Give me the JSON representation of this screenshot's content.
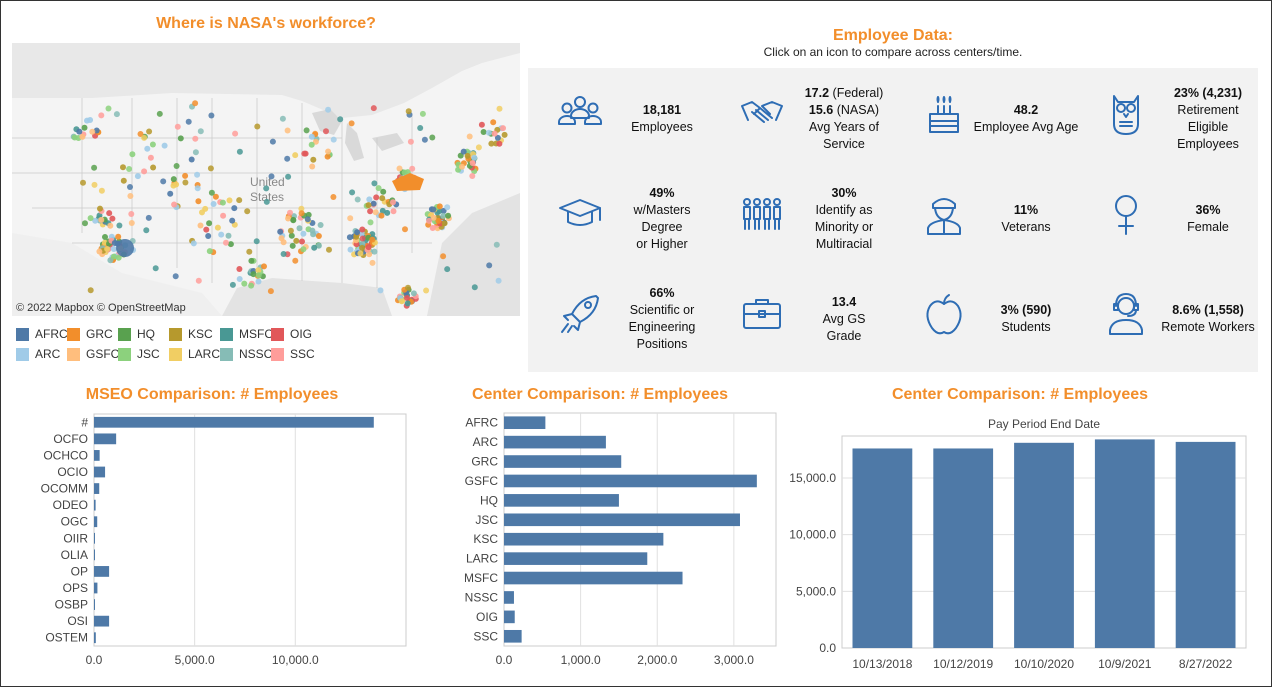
{
  "map_section": {
    "title": "Where is NASA's workforce?",
    "map_label": "United States",
    "map_label_line1": "United",
    "map_label_line2": "States",
    "attribution": "© 2022 Mapbox © OpenStreetMap",
    "legend": [
      {
        "label": "AFRC",
        "color": "#4e79a7"
      },
      {
        "label": "GRC",
        "color": "#f28e2b"
      },
      {
        "label": "HQ",
        "color": "#59a14f"
      },
      {
        "label": "KSC",
        "color": "#b6992d"
      },
      {
        "label": "MSFC",
        "color": "#499894"
      },
      {
        "label": "OIG",
        "color": "#e15759"
      },
      {
        "label": "ARC",
        "color": "#a0cbe8"
      },
      {
        "label": "GSFC",
        "color": "#ffbe7d"
      },
      {
        "label": "JSC",
        "color": "#8cd17d"
      },
      {
        "label": "LARC",
        "color": "#f1ce63"
      },
      {
        "label": "NSSC",
        "color": "#86bcb6"
      },
      {
        "label": "SSC",
        "color": "#ff9d9a"
      }
    ]
  },
  "employee_data": {
    "title": "Employee Data:",
    "subtitle": "Click on an icon to compare across centers/time.",
    "accent_color": "#2e6db4",
    "tiles": [
      {
        "icon": "people-group-icon",
        "bold": "18,181",
        "lines": [
          "Employees"
        ]
      },
      {
        "icon": "handshake-icon",
        "bold": "17.2",
        "bold_suffix": " (Federal)",
        "bold2": "15.6",
        "bold2_suffix": " (NASA)",
        "lines": [
          "Avg Years of Service"
        ]
      },
      {
        "icon": "birthday-cake-icon",
        "bold": "48.2",
        "lines": [
          "Employee Avg Age"
        ]
      },
      {
        "icon": "owl-icon",
        "bold": "23% (4,231)",
        "lines": [
          "Retirement",
          "Eligible",
          "Employees"
        ]
      },
      {
        "icon": "graduation-cap-icon",
        "bold": "49%",
        "lines": [
          "w/Masters",
          "Degree",
          "or Higher"
        ]
      },
      {
        "icon": "diverse-people-icon",
        "bold": "30%",
        "lines": [
          "Identify as",
          "Minority or",
          "Multiracial"
        ]
      },
      {
        "icon": "soldier-icon",
        "bold": "11%",
        "lines": [
          "Veterans"
        ]
      },
      {
        "icon": "female-symbol-icon",
        "bold": "36%",
        "lines": [
          "Female"
        ]
      },
      {
        "icon": "rocket-icon",
        "bold": "66%",
        "lines": [
          "Scientific or",
          "Engineering",
          "Positions"
        ]
      },
      {
        "icon": "briefcase-icon",
        "bold": "13.4",
        "lines": [
          "Avg GS",
          "Grade"
        ]
      },
      {
        "icon": "apple-icon",
        "bold": "3% (590)",
        "lines": [
          "Students"
        ]
      },
      {
        "icon": "headset-user-icon",
        "bold": "8.6% (1,558)",
        "lines": [
          "Remote Workers"
        ]
      }
    ]
  },
  "chart_data": [
    {
      "type": "bar",
      "orientation": "horizontal",
      "title": "MSEO Comparison: # Employees",
      "categories": [
        "#",
        "OCFO",
        "OCHCO",
        "OCIO",
        "OCOMM",
        "ODEO",
        "OGC",
        "OIIR",
        "OLIA",
        "OP",
        "OPS",
        "OSBP",
        "OSI",
        "OSTEM"
      ],
      "values": [
        13900,
        1100,
        280,
        550,
        260,
        80,
        160,
        20,
        30,
        750,
        170,
        30,
        750,
        90
      ],
      "xlim": [
        0,
        15500
      ],
      "xticks": [
        0,
        5000,
        10000
      ],
      "xtick_labels": [
        "0.0",
        "5,000.0",
        "10,000.0"
      ],
      "color": "#4e79a7",
      "grid": true
    },
    {
      "type": "bar",
      "orientation": "horizontal",
      "title": "Center Comparison: # Employees",
      "categories": [
        "AFRC",
        "ARC",
        "GRC",
        "GSFC",
        "HQ",
        "JSC",
        "KSC",
        "LARC",
        "MSFC",
        "NSSC",
        "OIG",
        "SSC"
      ],
      "values": [
        540,
        1330,
        1530,
        3300,
        1500,
        3080,
        2080,
        1870,
        2330,
        130,
        140,
        230
      ],
      "xlim": [
        0,
        3550
      ],
      "xticks": [
        0,
        1000,
        2000,
        3000
      ],
      "xtick_labels": [
        "0.0",
        "1,000.0",
        "2,000.0",
        "3,000.0"
      ],
      "color": "#4e79a7",
      "grid": true
    },
    {
      "type": "bar",
      "orientation": "vertical",
      "title": "Center Comparison: # Employees",
      "subtitle": "Pay Period End Date",
      "categories": [
        "10/13/2018",
        "10/12/2019",
        "10/10/2020",
        "10/9/2021",
        "8/27/2022"
      ],
      "values": [
        17600,
        17600,
        18100,
        18400,
        18181
      ],
      "ylim": [
        0,
        18700
      ],
      "yticks": [
        0,
        5000,
        10000,
        15000
      ],
      "ytick_labels": [
        "0.0",
        "5,000.0",
        "10,000.0",
        "15,000.0"
      ],
      "color": "#4e79a7",
      "grid": true
    }
  ]
}
